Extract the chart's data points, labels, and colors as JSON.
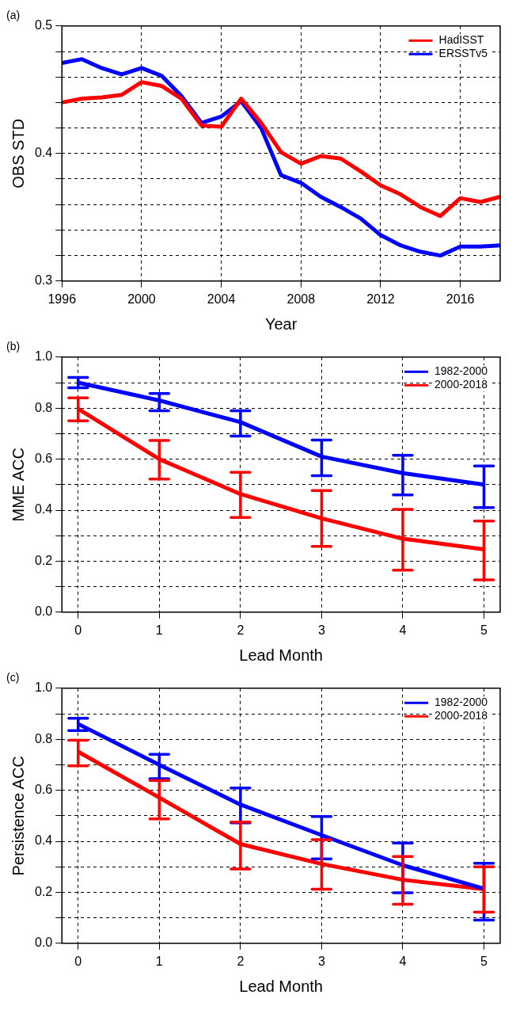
{
  "chart_data": [
    {
      "type": "line",
      "title": "(a)",
      "xlabel": "Year",
      "ylabel": "OBS STD",
      "xlim": [
        1996,
        2018
      ],
      "xticks": [
        1996,
        2000,
        2004,
        2008,
        2012,
        2016
      ],
      "ylim": [
        0.3,
        0.5
      ],
      "yticks": [
        0.3,
        {
          "value": 0.32,
          "label": null
        },
        {
          "value": 0.34,
          "label": null
        },
        {
          "value": 0.36,
          "label": null
        },
        {
          "value": 0.38,
          "label": null
        },
        0.4,
        {
          "value": 0.42,
          "label": null
        },
        {
          "value": 0.44,
          "label": null
        },
        {
          "value": 0.46,
          "label": null
        },
        {
          "value": 0.48,
          "label": null
        },
        0.5
      ],
      "grid": true,
      "legend": "top right",
      "x": [
        1996,
        1997,
        1998,
        1999,
        2000,
        2001,
        2002,
        2003,
        2004,
        2005,
        2006,
        2007,
        2008,
        2009,
        2010,
        2011,
        2012,
        2013,
        2014,
        2015,
        2016,
        2017,
        2018
      ],
      "series": [
        {
          "name": "HadISST",
          "color": "#ff0000",
          "values": [
            0.44,
            0.443,
            0.444,
            0.446,
            0.456,
            0.453,
            0.443,
            0.422,
            0.421,
            0.443,
            0.424,
            0.401,
            0.392,
            0.398,
            0.396,
            0.386,
            0.375,
            0.368,
            0.358,
            0.351,
            0.365,
            0.362,
            0.366
          ]
        },
        {
          "name": "ERSSTv5",
          "color": "#0000ff",
          "values": [
            0.471,
            0.474,
            0.467,
            0.462,
            0.467,
            0.461,
            0.445,
            0.424,
            0.429,
            0.441,
            0.42,
            0.383,
            0.377,
            0.366,
            0.358,
            0.349,
            0.336,
            0.328,
            0.323,
            0.32,
            0.327,
            0.327,
            0.328
          ]
        }
      ]
    },
    {
      "type": "line",
      "title": "(b)",
      "xlabel": "Lead Month",
      "ylabel": "MME ACC",
      "xlim": [
        -0.2,
        5.2
      ],
      "xticks": [
        0,
        1,
        2,
        3,
        4,
        5
      ],
      "ylim": [
        0,
        1
      ],
      "yticks": [
        {
          "value": 0,
          "label": "0.0"
        },
        {
          "value": 0.1,
          "label": null
        },
        0.2,
        {
          "value": 0.3,
          "label": null
        },
        0.4,
        {
          "value": 0.5,
          "label": null
        },
        0.6,
        {
          "value": 0.7,
          "label": null
        },
        0.8,
        {
          "value": 0.9,
          "label": null
        },
        {
          "value": 1,
          "label": "1.0"
        }
      ],
      "grid": true,
      "legend": "top right",
      "x": [
        0,
        1,
        2,
        3,
        4,
        5
      ],
      "series": [
        {
          "name": "1982-2000",
          "color": "#0000ff",
          "values": [
            0.9,
            0.83,
            0.745,
            0.61,
            0.545,
            0.5
          ],
          "errors": [
            [
              0.88,
              0.92
            ],
            [
              0.79,
              0.857
            ],
            [
              0.69,
              0.79
            ],
            [
              0.535,
              0.675
            ],
            [
              0.46,
              0.615
            ],
            [
              0.41,
              0.573
            ]
          ]
        },
        {
          "name": "2000-2018",
          "color": "#ff0000",
          "values": [
            0.797,
            0.6,
            0.463,
            0.368,
            0.288,
            0.246
          ],
          "errors": [
            [
              0.75,
              0.84
            ],
            [
              0.522,
              0.673
            ],
            [
              0.371,
              0.548
            ],
            [
              0.258,
              0.477
            ],
            [
              0.165,
              0.403
            ],
            [
              0.127,
              0.357
            ]
          ]
        }
      ]
    },
    {
      "type": "line",
      "title": "(c)",
      "xlabel": "Lead Month",
      "ylabel": "Persistence ACC",
      "xlim": [
        -0.2,
        5.2
      ],
      "xticks": [
        0,
        1,
        2,
        3,
        4,
        5
      ],
      "ylim": [
        0,
        1
      ],
      "yticks": [
        {
          "value": 0,
          "label": "0.0"
        },
        {
          "value": 0.1,
          "label": null
        },
        0.2,
        {
          "value": 0.3,
          "label": null
        },
        0.4,
        {
          "value": 0.5,
          "label": null
        },
        0.6,
        {
          "value": 0.7,
          "label": null
        },
        0.8,
        {
          "value": 0.9,
          "label": null
        },
        {
          "value": 1,
          "label": "1.0"
        }
      ],
      "grid": true,
      "legend": "top right",
      "x": [
        0,
        1,
        2,
        3,
        4,
        5
      ],
      "series": [
        {
          "name": "1982-2000",
          "color": "#0000ff",
          "values": [
            0.86,
            0.7,
            0.544,
            0.424,
            0.306,
            0.214
          ],
          "errors": [
            [
              0.834,
              0.882
            ],
            [
              0.645,
              0.741
            ],
            [
              0.472,
              0.609
            ],
            [
              0.331,
              0.497
            ],
            [
              0.198,
              0.393
            ],
            [
              0.091,
              0.314
            ]
          ]
        },
        {
          "name": "2000-2018",
          "color": "#ff0000",
          "values": [
            0.751,
            0.571,
            0.389,
            0.311,
            0.249,
            0.212
          ],
          "errors": [
            [
              0.696,
              0.796
            ],
            [
              0.488,
              0.638
            ],
            [
              0.291,
              0.475
            ],
            [
              0.212,
              0.406
            ],
            [
              0.153,
              0.34
            ],
            [
              0.122,
              0.3
            ]
          ]
        }
      ]
    }
  ]
}
